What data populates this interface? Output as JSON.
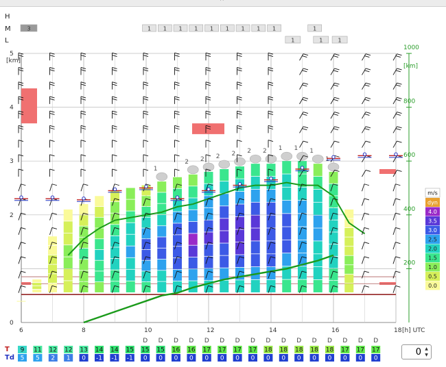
{
  "rows": {
    "high": "H",
    "mid": "M",
    "low": "L"
  },
  "cloud_boxes": {
    "mid": [
      {
        "x": 6.2,
        "v": "3"
      },
      {
        "x": 10.1,
        "v": "1"
      },
      {
        "x": 10.6,
        "v": "1"
      },
      {
        "x": 11.1,
        "v": "1"
      },
      {
        "x": 11.6,
        "v": "1"
      },
      {
        "x": 12.1,
        "v": "1"
      },
      {
        "x": 12.6,
        "v": "1"
      },
      {
        "x": 13.1,
        "v": "1"
      },
      {
        "x": 13.6,
        "v": "1"
      },
      {
        "x": 14.1,
        "v": "1"
      },
      {
        "x": 15.4,
        "v": "1"
      }
    ],
    "low": [
      {
        "x": 14.7,
        "v": "1"
      },
      {
        "x": 15.6,
        "v": "1"
      },
      {
        "x": 16.2,
        "v": "1"
      }
    ]
  },
  "chart_data": {
    "type": "meteogram",
    "x_label": "[h] UTC",
    "x_range": [
      6,
      18
    ],
    "x_ticks": [
      "6",
      "8",
      "10",
      "12",
      "14",
      "16",
      "18"
    ],
    "y_left_unit": "[km]",
    "y_left_range": [
      0,
      5
    ],
    "y_left_ticks": [
      "0",
      "2",
      "3",
      "4",
      "5"
    ],
    "y_right_unit": "[km]",
    "y_right_range": [
      0,
      1000
    ],
    "y_right_ticks": [
      "200",
      "400",
      "600",
      "800",
      "1000"
    ],
    "legend": {
      "title": "m/s",
      "entries": [
        {
          "label": "dyn",
          "color": "#e8a030"
        },
        {
          "label": "4.0",
          "color": "#9a2ac8"
        },
        {
          "label": "3.5",
          "color": "#5a38d8"
        },
        {
          "label": "3.0",
          "color": "#3c5ae6"
        },
        {
          "label": "2.5",
          "color": "#2ea2ee"
        },
        {
          "label": "2.0",
          "color": "#22d2c0"
        },
        {
          "label": "1.5",
          "color": "#3ae68e"
        },
        {
          "label": "1.0",
          "color": "#8aee5a"
        },
        {
          "label": "0.5",
          "color": "#d6f05a"
        },
        {
          "label": "0.0",
          "color": "#fafa9a"
        }
      ]
    },
    "time": [
      6,
      6.5,
      7,
      7.5,
      8,
      8.5,
      9,
      9.5,
      10,
      10.5,
      11,
      11.5,
      12,
      12.5,
      13,
      13.5,
      14,
      14.5,
      15,
      15.5,
      16,
      16.5,
      17,
      17.5,
      18
    ],
    "thermal_top_km": [
      0.4,
      0.8,
      1.6,
      2.1,
      2.2,
      2.35,
      2.45,
      2.5,
      2.55,
      2.62,
      2.7,
      2.75,
      2.8,
      2.85,
      2.9,
      2.95,
      2.95,
      3.0,
      3.0,
      2.95,
      2.8,
      2.1
    ],
    "thermal_strength_profile": [
      [
        0.0
      ],
      [
        0.0,
        0.5,
        0.5,
        0.0
      ],
      [
        0.0,
        0.5,
        0.5,
        0.5,
        0.0,
        0.0
      ],
      [
        0.5,
        0.5,
        1.0,
        1.0,
        0.5,
        0.5,
        0.0
      ],
      [
        1.0,
        1.0,
        1.0,
        1.5,
        1.0,
        1.0,
        0.5,
        0.0
      ],
      [
        1.0,
        1.5,
        1.5,
        2.0,
        1.5,
        1.0,
        1.0,
        0.5,
        0.0
      ],
      [
        1.5,
        1.5,
        2.0,
        2.0,
        2.0,
        1.5,
        1.0,
        1.0,
        0.5
      ],
      [
        1.5,
        2.0,
        2.0,
        2.5,
        2.0,
        2.0,
        1.5,
        1.0,
        1.0
      ],
      [
        1.5,
        2.0,
        2.5,
        3.0,
        3.0,
        2.5,
        2.0,
        1.5,
        1.0,
        0.5
      ],
      [
        2.0,
        2.0,
        2.5,
        3.0,
        3.0,
        2.5,
        2.0,
        1.5,
        1.5,
        1.0
      ],
      [
        2.0,
        2.5,
        3.0,
        3.0,
        3.0,
        3.0,
        2.5,
        2.0,
        1.5,
        1.0
      ],
      [
        2.0,
        2.5,
        3.0,
        3.5,
        4.0,
        3.0,
        2.5,
        2.0,
        1.5,
        1.0
      ],
      [
        2.0,
        2.5,
        3.0,
        3.0,
        3.5,
        3.0,
        2.5,
        2.5,
        2.0,
        1.5
      ],
      [
        2.0,
        2.5,
        3.0,
        3.0,
        3.5,
        3.5,
        3.0,
        2.5,
        2.0,
        1.5
      ],
      [
        2.0,
        2.5,
        3.0,
        3.5,
        3.5,
        3.5,
        3.0,
        2.5,
        2.0,
        1.5
      ],
      [
        2.0,
        2.5,
        3.0,
        3.0,
        3.5,
        3.5,
        3.0,
        2.5,
        2.0,
        1.5
      ],
      [
        2.0,
        2.5,
        3.0,
        3.0,
        3.0,
        3.0,
        3.0,
        2.5,
        2.0,
        1.5
      ],
      [
        1.5,
        2.0,
        2.5,
        3.0,
        3.0,
        3.0,
        2.5,
        2.0,
        2.0,
        1.5
      ],
      [
        1.5,
        2.0,
        2.5,
        2.5,
        2.5,
        2.5,
        2.5,
        2.0,
        1.5,
        1.5
      ],
      [
        1.5,
        2.0,
        2.0,
        2.0,
        2.5,
        2.5,
        2.0,
        2.0,
        1.5,
        1.0
      ],
      [
        1.5,
        1.5,
        2.0,
        2.0,
        2.0,
        2.0,
        2.0,
        1.5,
        1.5,
        1.0
      ],
      [
        0.5,
        0.5,
        1.0,
        1.0,
        0.5,
        0.5,
        0.5,
        0.0,
        0.0
      ]
    ],
    "cumulus_labels": [
      {
        "x": 10.5,
        "v": "1"
      },
      {
        "x": 11.5,
        "v": "2"
      },
      {
        "x": 12.0,
        "v": "2"
      },
      {
        "x": 12.5,
        "v": "2"
      },
      {
        "x": 13.0,
        "v": "2"
      },
      {
        "x": 13.5,
        "v": "2"
      },
      {
        "x": 14.0,
        "v": "2"
      },
      {
        "x": 14.5,
        "v": "1"
      },
      {
        "x": 15.0,
        "v": "1"
      },
      {
        "x": 15.5,
        "v": "1"
      },
      {
        "x": 16.0,
        "v": "1"
      }
    ],
    "bl_height_right_km": [
      null,
      null,
      null,
      null,
      0,
      20,
      40,
      60,
      80,
      100,
      110,
      130,
      145,
      160,
      170,
      180,
      190,
      200,
      215,
      230,
      250
    ],
    "bl_top_green_km": [
      null,
      null,
      null,
      1.25,
      1.55,
      1.75,
      1.9,
      1.95,
      2.0,
      2.05,
      2.15,
      2.2,
      2.3,
      2.4,
      2.5,
      2.55,
      2.55,
      2.6,
      2.55,
      2.55,
      2.35,
      1.85,
      1.65
    ],
    "inversion_markers": [
      {
        "x": 6,
        "y": 2.3
      },
      {
        "x": 7,
        "y": 2.3
      },
      {
        "x": 8,
        "y": 2.28
      },
      {
        "x": 9,
        "y": 2.45
      },
      {
        "x": 10,
        "y": 2.5
      },
      {
        "x": 11,
        "y": 2.3
      },
      {
        "x": 12,
        "y": 2.45
      },
      {
        "x": 13,
        "y": 2.55
      },
      {
        "x": 14,
        "y": 2.65
      },
      {
        "x": 15,
        "y": 2.85
      },
      {
        "x": 16,
        "y": 3.05
      },
      {
        "x": 17,
        "y": 3.1
      },
      {
        "x": 18,
        "y": 3.1
      }
    ],
    "surface_temp_row_label": "T",
    "dewpoint_row_label": "Td",
    "T": [
      "9",
      "11",
      "12",
      "12",
      "13",
      "14",
      "14",
      "15",
      "15",
      "15",
      "16",
      "16",
      "17",
      "17",
      "17",
      "17",
      "18",
      "18",
      "18",
      "18",
      "18",
      "17",
      "17",
      "17"
    ],
    "Td": [
      "5",
      "5",
      "2",
      "1",
      "0",
      "-1",
      "-1",
      "-1",
      "0",
      "0",
      "0",
      "0",
      "0",
      "0",
      "0",
      "0",
      "0",
      "0",
      "0",
      "0",
      "0",
      "0",
      "0",
      "0"
    ]
  },
  "controls": {
    "stepper_value": "0",
    "up_arrow": "▲",
    "down_arrow": "▼"
  },
  "top_handle": "^"
}
